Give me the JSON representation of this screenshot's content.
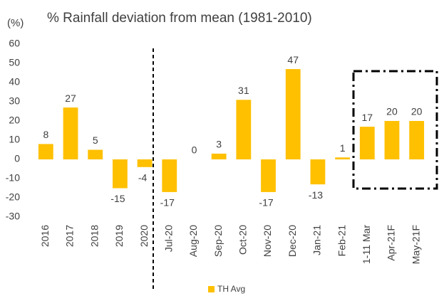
{
  "chart_data": {
    "type": "bar",
    "title": "% Rainfall deviation from mean (1981-2010)",
    "y_label": "(%)",
    "categories": [
      "2016",
      "2017",
      "2018",
      "2019",
      "2020",
      "Jul-20",
      "Aug-20",
      "Sep-20",
      "Oct-20",
      "Nov-20",
      "Dec-20",
      "Jan-21",
      "Feb-21",
      "1-11 Mar",
      "Apr-21F",
      "May-21F"
    ],
    "series": [
      {
        "name": "TH Avg",
        "color": "#ffc000",
        "values": [
          8,
          27,
          5,
          -15,
          -4,
          -17,
          0,
          3,
          31,
          -17,
          47,
          -13,
          1,
          17,
          20,
          20
        ]
      }
    ],
    "ylim": [
      -30,
      60
    ],
    "yticks": [
      -30,
      -20,
      -10,
      0,
      10,
      20,
      30,
      40,
      50,
      60
    ],
    "grid": false,
    "legend": "bottom"
  }
}
